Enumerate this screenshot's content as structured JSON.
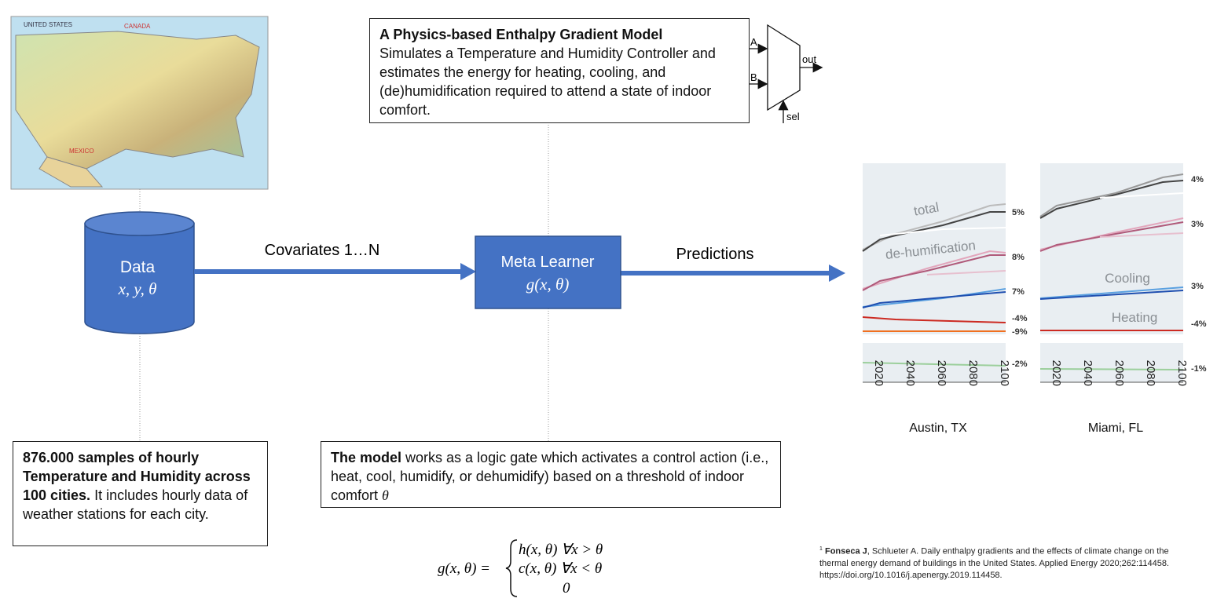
{
  "map": {
    "labels": [
      "UNITED STATES",
      "CANADA",
      "MEXICO"
    ]
  },
  "data_node": {
    "title": "Data",
    "vars": "x, y, θ"
  },
  "edges": [
    {
      "label": "Covariates 1…N"
    },
    {
      "label": "Predictions"
    }
  ],
  "meta_learner": {
    "title": "Meta Learner",
    "formula": "g(x, θ)"
  },
  "model_box": {
    "title": "A Physics-based Enthalpy Gradient Model",
    "body": "Simulates a Temperature and Humidity Controller and estimates the energy for heating, cooling, and (de)humidification required to attend a state of indoor comfort."
  },
  "mux": {
    "inputs": [
      "A",
      "B"
    ],
    "output": "out",
    "select": "sel"
  },
  "samples_box": {
    "bold": "876.000 samples of hourly Temperature and Humidity across 100 cities.",
    "body": "It includes hourly data of weather stations for each city."
  },
  "logic_box": {
    "bold": "The model",
    "body": "works as a logic gate which activates a control action (i.e., heat, cool, humidify, or dehumidify) based on a threshold of indoor comfort",
    "symbol": "θ"
  },
  "equation": {
    "lhs": "g(x, θ) =",
    "cases": [
      "h(x, θ) ∀x > θ",
      "c(x, θ) ∀x  < θ",
      "0"
    ]
  },
  "panels": [
    {
      "city": "Austin, TX",
      "series_labels": [
        "total",
        "de-humification"
      ],
      "end_labels": [
        "5%",
        "8%",
        "7%",
        "-4%",
        "-9%",
        "-2%"
      ],
      "years": [
        "2020",
        "2040",
        "2060",
        "2080",
        "2100"
      ]
    },
    {
      "city": "Miami, FL",
      "series_labels": [
        "Cooling",
        "Heating"
      ],
      "end_labels": [
        "4%",
        "3%",
        "3%",
        "-4%",
        "-1%"
      ],
      "years": [
        "2020",
        "2040",
        "2060",
        "2080",
        "2100"
      ]
    }
  ],
  "citation": {
    "marker": "1",
    "author": "Fonseca J",
    "body": ", Schlueter A. Daily enthalpy gradients and the effects of climate change on the thermal energy demand of buildings in the United States. Applied Energy 2020;262:114458. https://doi.org/10.1016/j.apenergy.2019.114458."
  }
}
